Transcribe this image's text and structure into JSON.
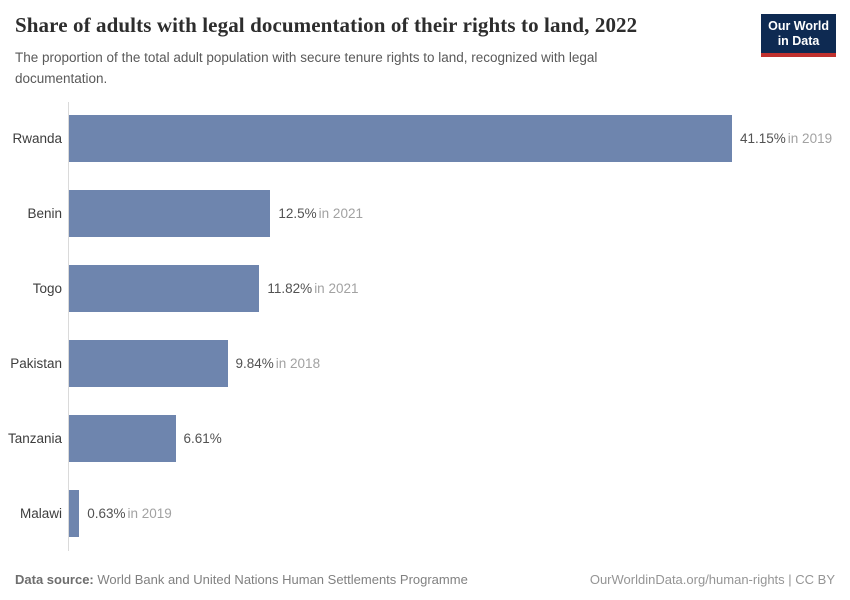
{
  "header": {
    "title": "Share of adults with legal documentation of their rights to land, 2022",
    "subtitle": "The proportion of the total adult population with secure tenure rights to land, recognized with legal documentation.",
    "logo_line1": "Our World",
    "logo_line2": "in Data"
  },
  "chart_data": {
    "type": "bar",
    "orientation": "horizontal",
    "categories": [
      "Rwanda",
      "Benin",
      "Togo",
      "Pakistan",
      "Tanzania",
      "Malawi"
    ],
    "values": [
      41.15,
      12.5,
      11.82,
      9.84,
      6.61,
      0.63
    ],
    "bars": [
      {
        "label": "Rwanda",
        "value": 41.15,
        "value_label": "41.15%",
        "year_label": "in 2019"
      },
      {
        "label": "Benin",
        "value": 12.5,
        "value_label": "12.5%",
        "year_label": "in 2021"
      },
      {
        "label": "Togo",
        "value": 11.82,
        "value_label": "11.82%",
        "year_label": "in 2021"
      },
      {
        "label": "Pakistan",
        "value": 9.84,
        "value_label": "9.84%",
        "year_label": "in 2018"
      },
      {
        "label": "Tanzania",
        "value": 6.61,
        "value_label": "6.61%",
        "year_label": ""
      },
      {
        "label": "Malawi",
        "value": 0.63,
        "value_label": "0.63%",
        "year_label": "in 2019"
      }
    ],
    "title": "Share of adults with legal documentation of their rights to land, 2022",
    "xlabel": "",
    "ylabel": "",
    "xlim": [
      0,
      41.15
    ],
    "grid": false,
    "legend": false
  },
  "footer": {
    "datasource_label": "Data source:",
    "datasource_value": "World Bank and United Nations Human Settlements Programme",
    "attribution": "OurWorldinData.org/human-rights | CC BY"
  },
  "colors": {
    "bar": "#6e85ae",
    "axis_line": "#dadada",
    "logo_background": "#0e2a52",
    "logo_accent": "#c0312e",
    "value_text": "#525252",
    "year_text": "#a2a2a2"
  }
}
